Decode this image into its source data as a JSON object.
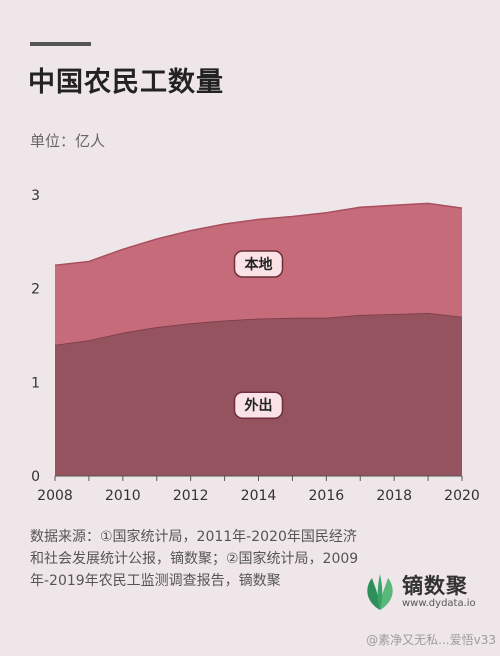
{
  "header": {
    "title": "中国农民工数量",
    "unit": "单位：亿人"
  },
  "chart_data": {
    "type": "area",
    "stacked": true,
    "x": [
      2008,
      2009,
      2010,
      2011,
      2012,
      2013,
      2014,
      2015,
      2016,
      2017,
      2018,
      2019,
      2020
    ],
    "xticks": [
      "2008",
      "2010",
      "2012",
      "2014",
      "2016",
      "2018",
      "2020"
    ],
    "yticks": [
      "0",
      "1",
      "2",
      "3"
    ],
    "ylim": [
      0,
      3
    ],
    "series": [
      {
        "name": "外出",
        "color": "#955360",
        "values": [
          1.4,
          1.45,
          1.53,
          1.59,
          1.63,
          1.66,
          1.68,
          1.69,
          1.69,
          1.72,
          1.73,
          1.74,
          1.7
        ]
      },
      {
        "name": "本地",
        "color": "#c66b7a",
        "values": [
          0.85,
          0.84,
          0.89,
          0.94,
          0.99,
          1.03,
          1.06,
          1.08,
          1.12,
          1.15,
          1.16,
          1.17,
          1.16
        ]
      }
    ],
    "grid": false,
    "legend": "inline labels"
  },
  "footer": {
    "source": "数据来源：①国家统计局，2011年-2020年国民经济和社会发展统计公报，镝数聚；②国家统计局，2009年-2019年农民工监测调查报告，镝数聚",
    "brand": "镝数聚",
    "url": "www.dydata.io",
    "watermark": "@素净又无私...爱悟v33"
  }
}
